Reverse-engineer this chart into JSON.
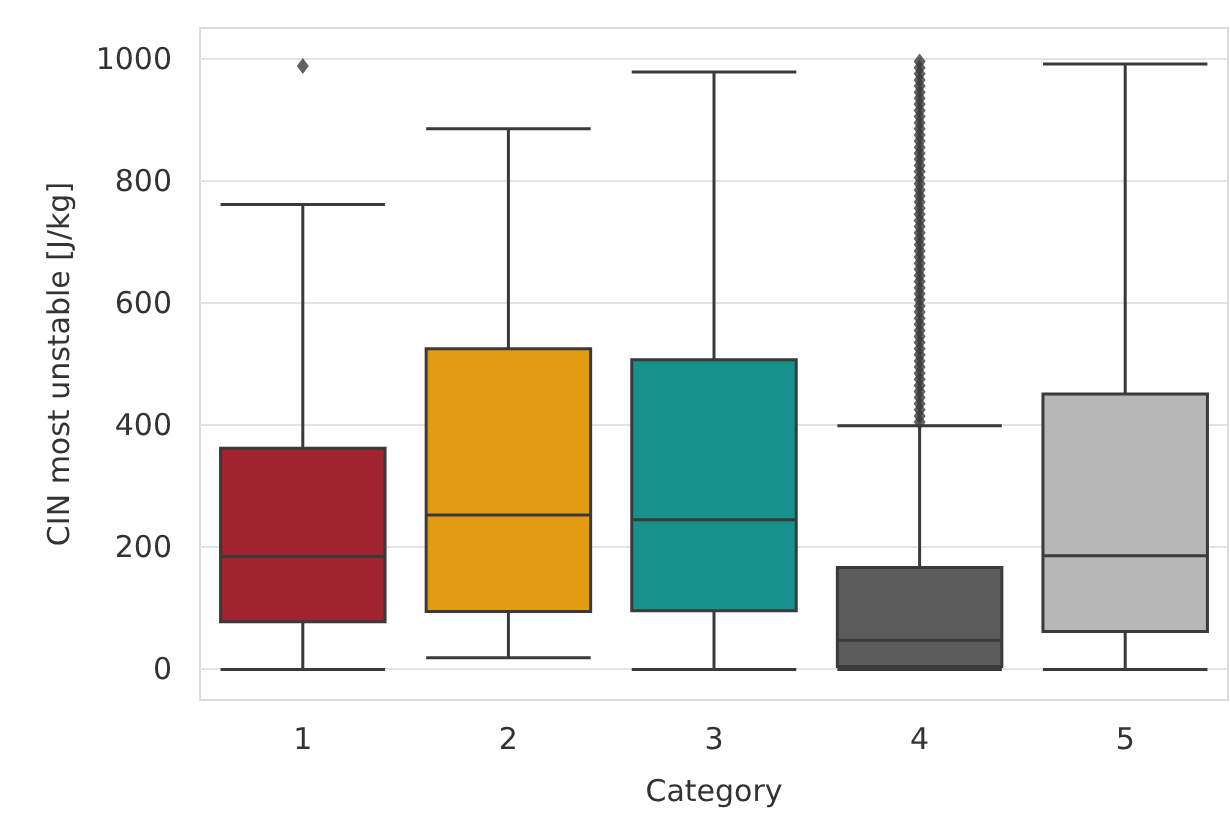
{
  "chart_data": {
    "type": "box",
    "xlabel": "Category",
    "ylabel": "CIN most unstable [J/kg]",
    "categories": [
      "1",
      "2",
      "3",
      "4",
      "5"
    ],
    "colors": [
      "#a1232f",
      "#e39b14",
      "#17918b",
      "#5c5c5c",
      "#b7b7b7"
    ],
    "boxes": [
      {
        "low": 0,
        "q1": 78,
        "median": 185,
        "q3": 362,
        "high": 761,
        "outliers": [
          988
        ]
      },
      {
        "low": 19,
        "q1": 95,
        "median": 253,
        "q3": 525,
        "high": 885
      },
      {
        "low": 0,
        "q1": 96,
        "median": 245,
        "q3": 507,
        "high": 978
      },
      {
        "low": 0,
        "q1": 5,
        "median": 48,
        "q3": 167,
        "high": 399,
        "outliers": [
          405,
          415,
          425,
          435,
          445,
          455,
          465,
          475,
          485,
          495,
          505,
          515,
          525,
          535,
          545,
          555,
          565,
          575,
          585,
          595,
          605,
          615,
          625,
          635,
          645,
          655,
          665,
          675,
          685,
          695,
          705,
          715,
          725,
          735,
          745,
          755,
          765,
          775,
          785,
          795,
          805,
          815,
          825,
          835,
          845,
          855,
          865,
          875,
          885,
          895,
          905,
          915,
          925,
          935,
          945,
          955,
          965,
          975,
          985,
          995
        ]
      },
      {
        "low": 0,
        "q1": 62,
        "median": 186,
        "q3": 451,
        "high": 991
      }
    ],
    "ylim": [
      -50,
      1050
    ],
    "yticks": [
      0,
      200,
      400,
      600,
      800,
      1000
    ],
    "grid": "y",
    "marker": "diamond"
  }
}
